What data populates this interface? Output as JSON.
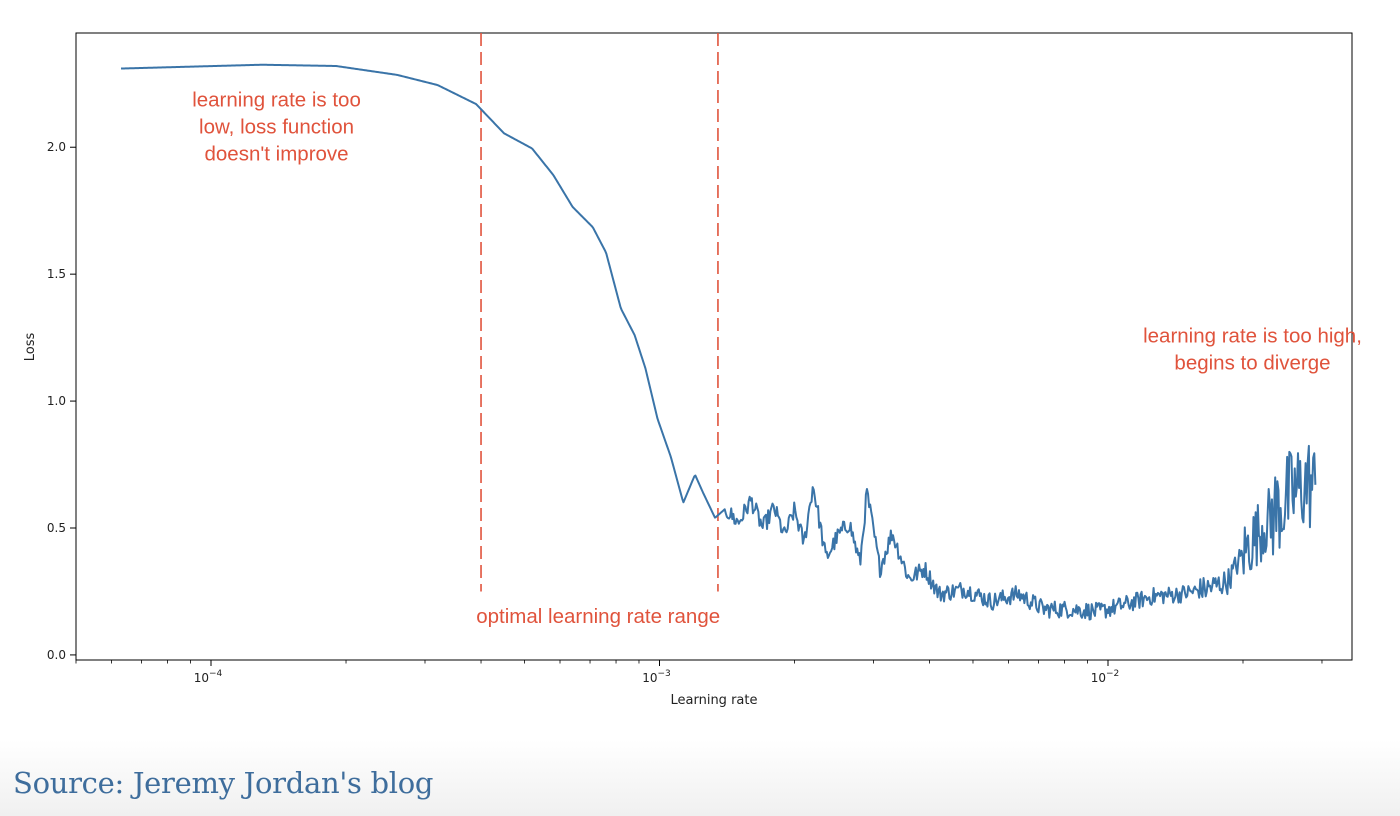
{
  "chart_data": {
    "type": "line",
    "xlabel": "Learning rate",
    "ylabel": "Loss",
    "xscale": "log",
    "xlim": [
      5e-05,
      0.035
    ],
    "ylim": [
      -0.02,
      2.45
    ],
    "grid": false,
    "x_ticks": [
      {
        "value": 0.0001,
        "base": "10",
        "exp": "−4"
      },
      {
        "value": 0.001,
        "base": "10",
        "exp": "−3"
      },
      {
        "value": 0.01,
        "base": "10",
        "exp": "−2"
      }
    ],
    "y_ticks": [
      {
        "value": 0.0,
        "label": "0.0"
      },
      {
        "value": 0.5,
        "label": "0.5"
      },
      {
        "value": 1.0,
        "label": "1.0"
      },
      {
        "value": 1.5,
        "label": "1.5"
      },
      {
        "value": 2.0,
        "label": "2.0"
      }
    ],
    "series_color": "#3a74a8",
    "annotation_color": "#e0533c",
    "x_start": 6.3e-05,
    "x_end": 0.029,
    "series_points": [
      [
        6.3e-05,
        2.31
      ],
      [
        0.00013,
        2.325
      ],
      [
        0.00019,
        2.32
      ],
      [
        0.00026,
        2.285
      ],
      [
        0.00032,
        2.245
      ],
      [
        0.00039,
        2.17
      ],
      [
        0.00045,
        2.055
      ],
      [
        0.00052,
        1.995
      ],
      [
        0.00058,
        1.89
      ],
      [
        0.00064,
        1.765
      ],
      [
        0.00071,
        1.685
      ],
      [
        0.00076,
        1.585
      ],
      [
        0.00082,
        1.365
      ],
      [
        0.00088,
        1.26
      ],
      [
        0.00093,
        1.13
      ],
      [
        0.00099,
        0.93
      ],
      [
        0.00106,
        0.78
      ],
      [
        0.00113,
        0.6
      ],
      [
        0.0012,
        0.71
      ],
      [
        0.00125,
        0.64
      ],
      [
        0.00133,
        0.54
      ],
      [
        0.0014,
        0.575
      ],
      [
        0.0015,
        0.52
      ],
      [
        0.0016,
        0.61
      ],
      [
        0.0017,
        0.5
      ],
      [
        0.0018,
        0.58
      ],
      [
        0.0019,
        0.47
      ],
      [
        0.002,
        0.57
      ],
      [
        0.0021,
        0.44
      ],
      [
        0.0022,
        0.67
      ],
      [
        0.00235,
        0.38
      ],
      [
        0.0025,
        0.47
      ],
      [
        0.00265,
        0.52
      ],
      [
        0.0028,
        0.36
      ],
      [
        0.0029,
        0.64
      ],
      [
        0.0031,
        0.34
      ],
      [
        0.0033,
        0.48
      ],
      [
        0.0036,
        0.3
      ],
      [
        0.0039,
        0.34
      ],
      [
        0.0042,
        0.24
      ],
      [
        0.0048,
        0.26
      ],
      [
        0.0055,
        0.21
      ],
      [
        0.0063,
        0.24
      ],
      [
        0.0072,
        0.18
      ],
      [
        0.0083,
        0.18
      ],
      [
        0.0095,
        0.17
      ],
      [
        0.011,
        0.2
      ],
      [
        0.0125,
        0.23
      ],
      [
        0.0145,
        0.24
      ],
      [
        0.0165,
        0.26
      ],
      [
        0.0185,
        0.29
      ],
      [
        0.02,
        0.4
      ],
      [
        0.022,
        0.5
      ],
      [
        0.024,
        0.58
      ],
      [
        0.026,
        0.64
      ],
      [
        0.028,
        0.68
      ],
      [
        0.029,
        0.65
      ]
    ],
    "vlines": [
      {
        "x": 0.0004,
        "ymin": 0.25,
        "ymax": 2.45
      },
      {
        "x": 0.00135,
        "ymin": 0.25,
        "ymax": 2.45
      }
    ],
    "annotations": [
      {
        "lines": [
          "learning rate is too",
          "low, loss function",
          "doesn't improve"
        ],
        "x": 0.00014,
        "y": 2.16
      },
      {
        "lines": [
          "optimal learning rate range"
        ],
        "x": 0.00073,
        "y": 0.125
      },
      {
        "lines": [
          "learning rate is too high,",
          "begins to diverge"
        ],
        "x": 0.021,
        "y": 1.23
      }
    ]
  },
  "caption": "Source: Jeremy Jordan's blog"
}
